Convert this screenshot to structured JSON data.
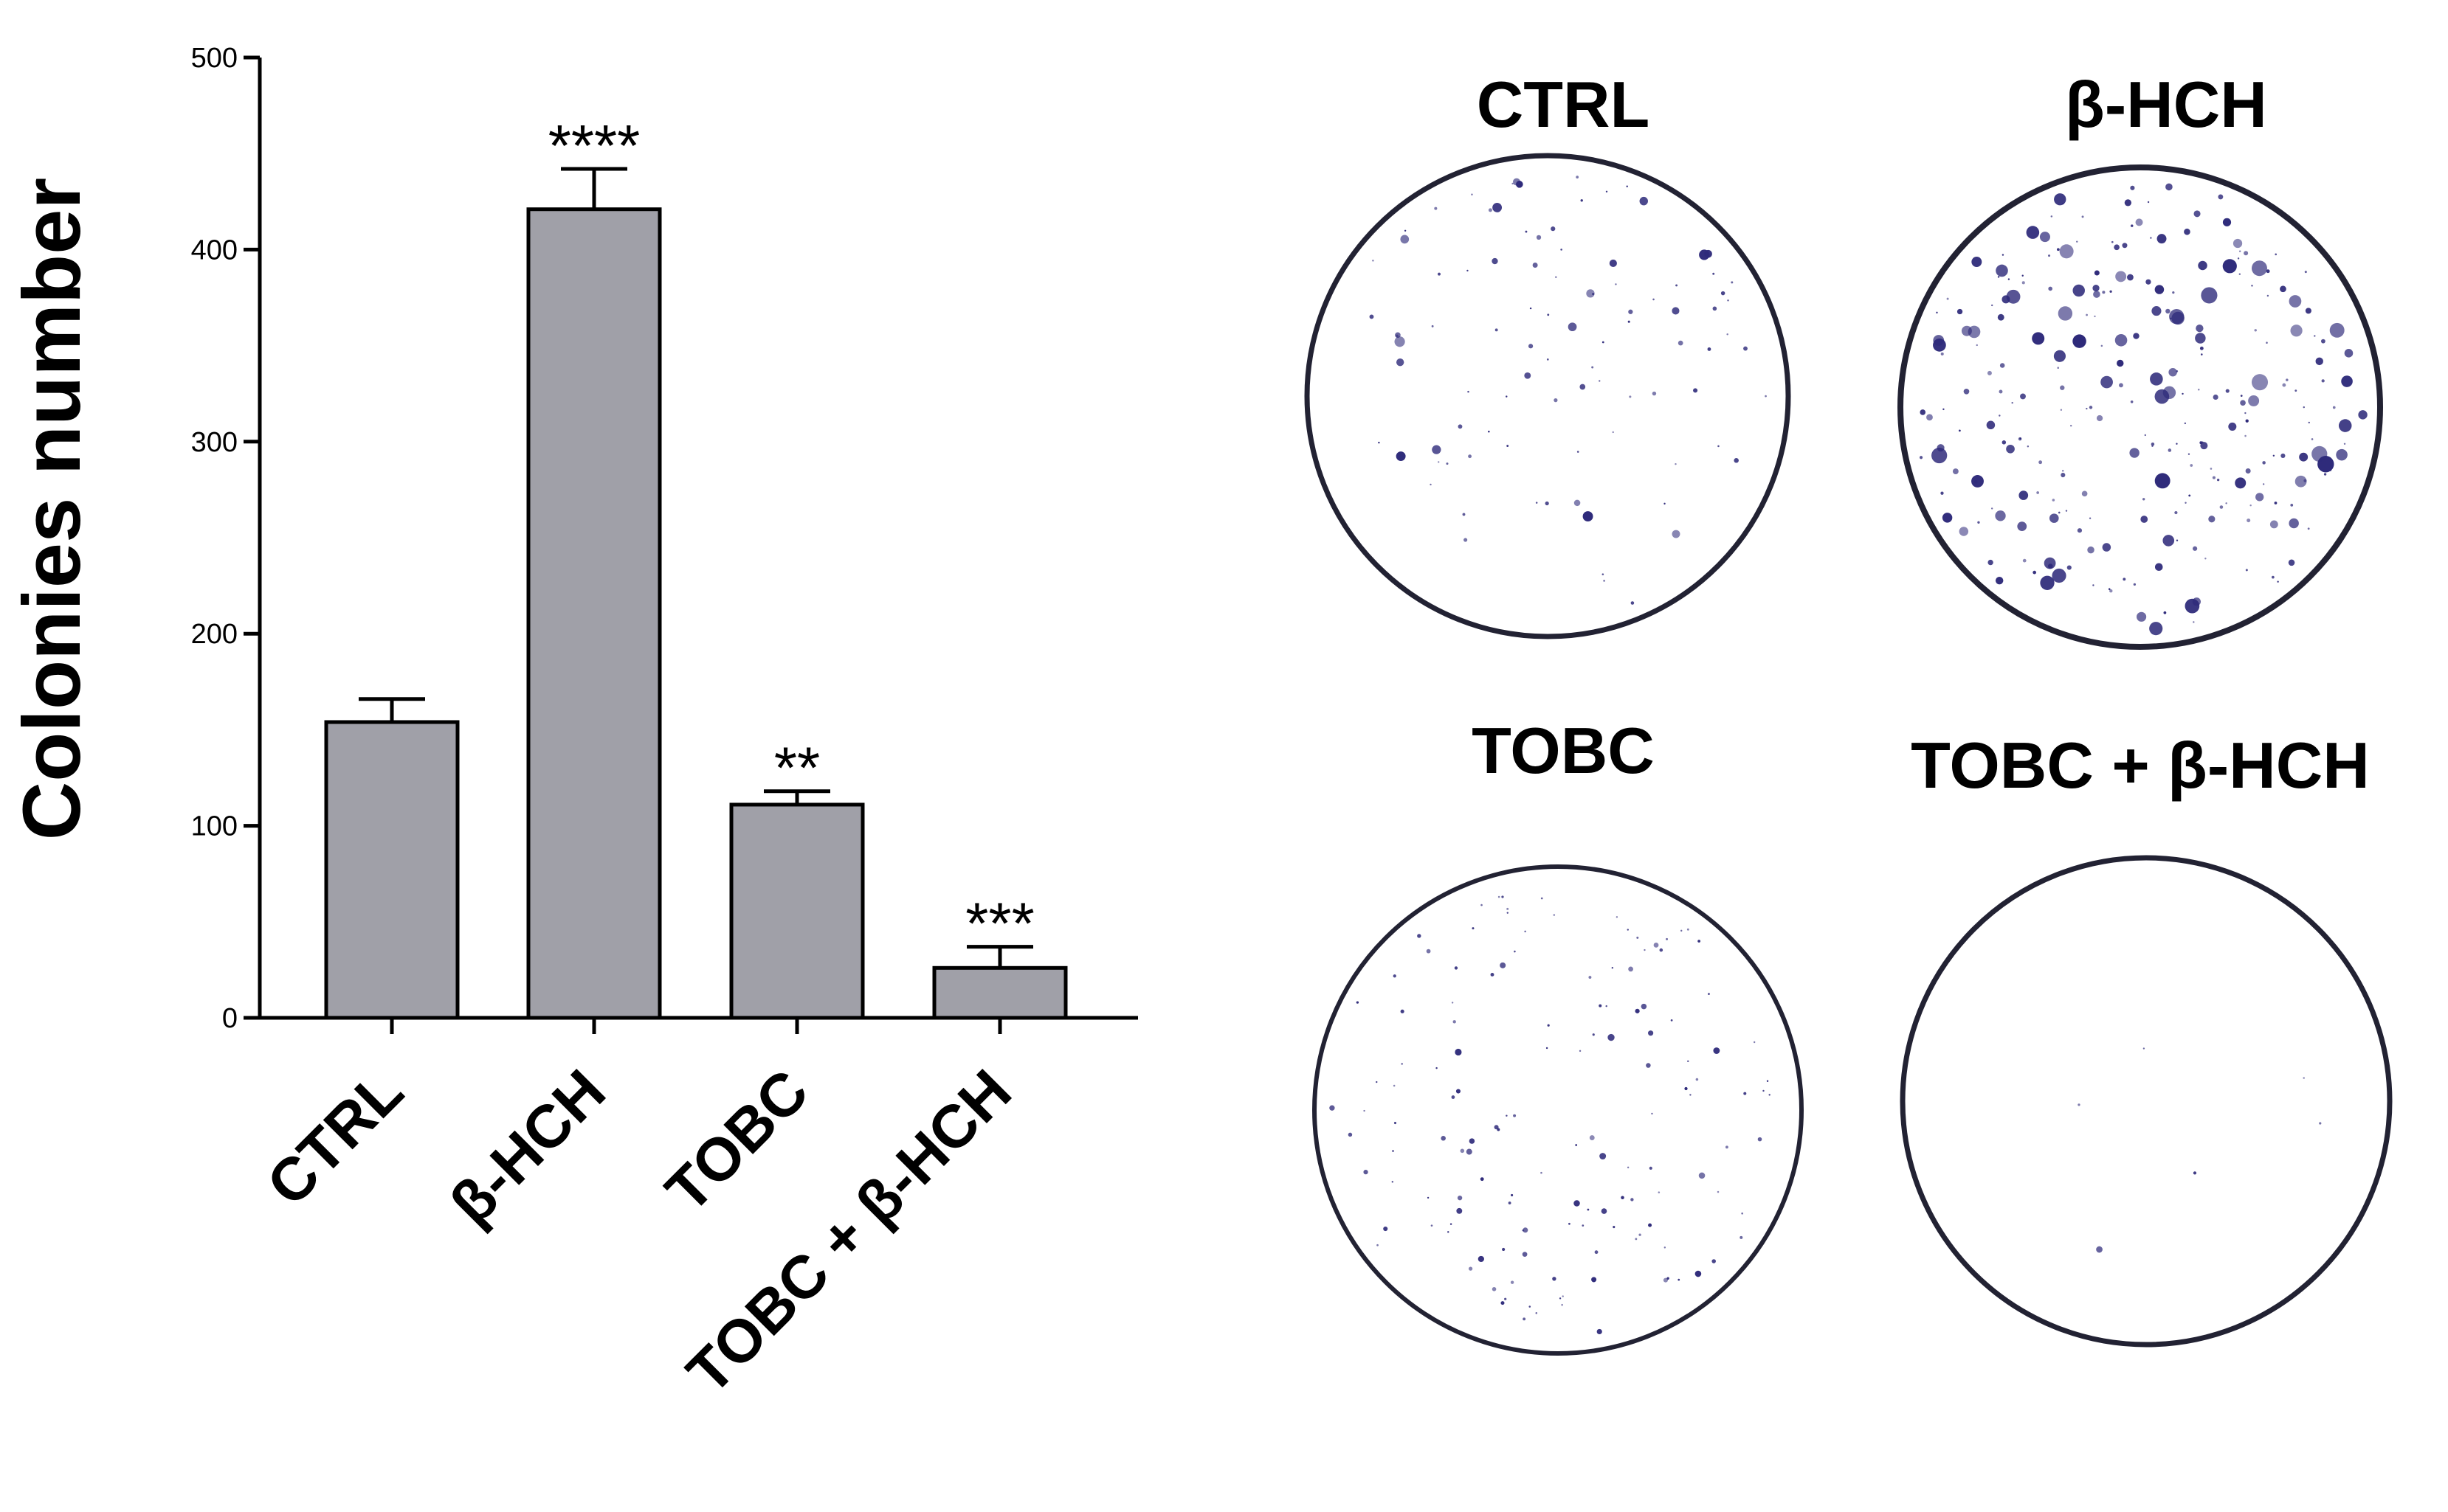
{
  "chart_data": {
    "type": "bar",
    "categories": [
      "CTRL",
      "β-HCH",
      "TOBC",
      "TOBC + β-HCH"
    ],
    "values": [
      154,
      421,
      111,
      26
    ],
    "errors": [
      12,
      21,
      7,
      11
    ],
    "significance": [
      "",
      "****",
      "**",
      "***"
    ],
    "ylabel": "Colonies number",
    "xlabel": "",
    "ylim": [
      0,
      500
    ],
    "yticks": [
      0,
      100,
      200,
      300,
      400,
      500
    ],
    "bar_color": "#a0a0a8",
    "bar_edge_color": "#000000"
  },
  "dishes": [
    {
      "title": "CTRL",
      "colony_density": "moderate"
    },
    {
      "title": "β-HCH",
      "colony_density": "high"
    },
    {
      "title": "TOBC",
      "colony_density": "low"
    },
    {
      "title": "TOBC + β-HCH",
      "colony_density": "very-low"
    }
  ],
  "colors": {
    "colony": "#2e2a7a",
    "dish_rim": "#222233",
    "dish_fill": "#ffffff"
  }
}
